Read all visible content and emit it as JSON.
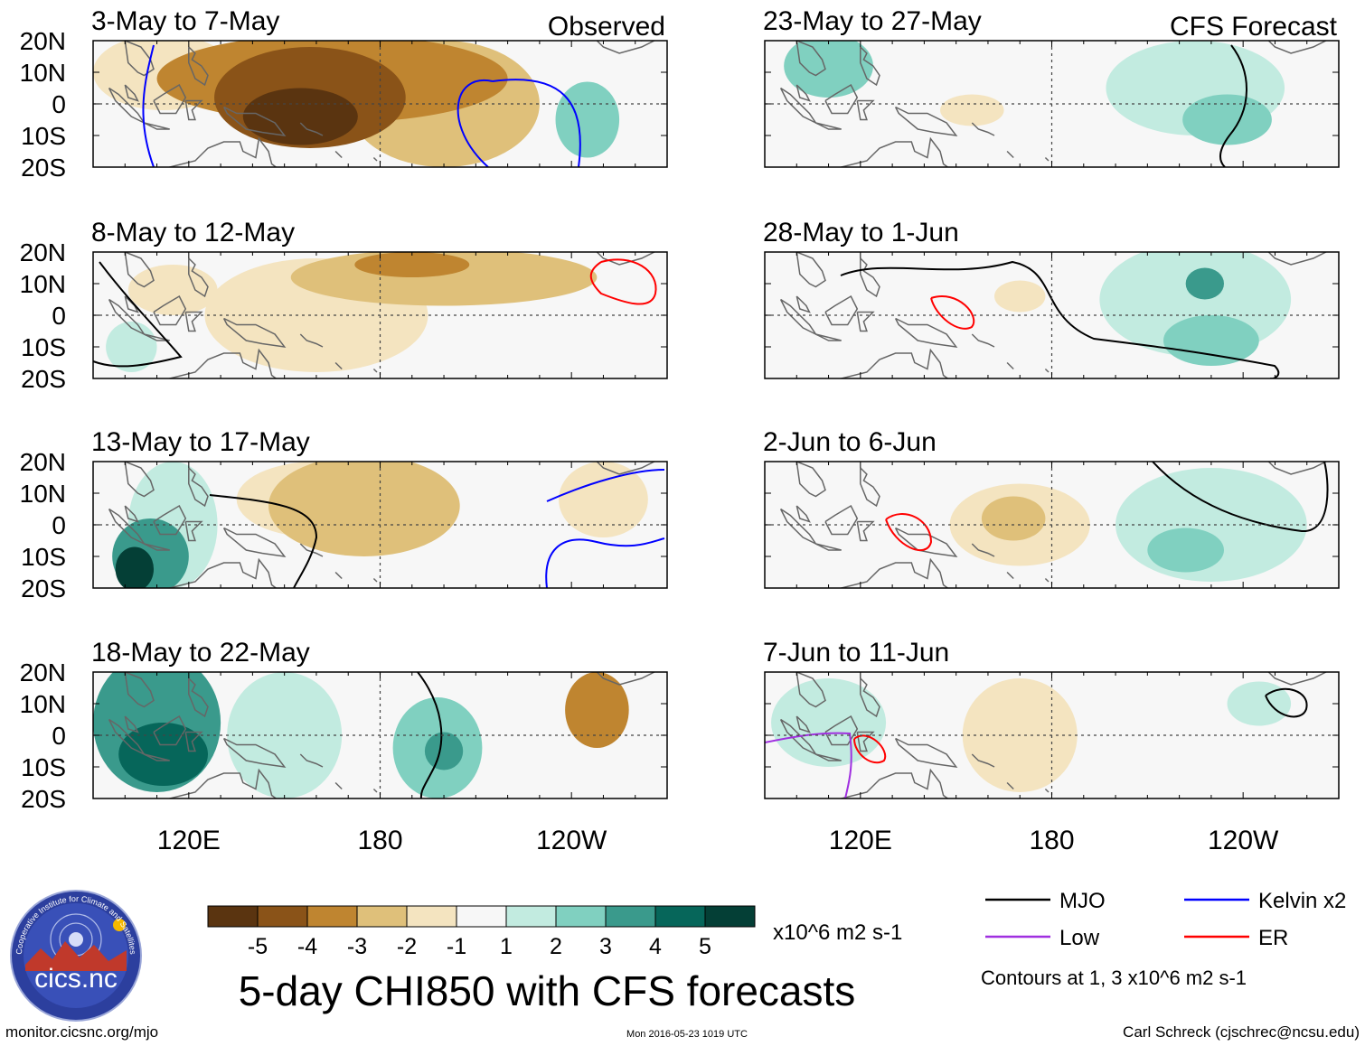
{
  "chart_data": {
    "type": "heatmap",
    "title": "5-day CHI850 with CFS forecasts",
    "variable": "CHI850",
    "units": "x10^6 m2 s-1",
    "x_ticks": [
      "120E",
      "180",
      "120W"
    ],
    "y_ticks": [
      "20N",
      "10N",
      "0",
      "10S",
      "20S"
    ],
    "columns": [
      {
        "label": "Observed",
        "panels": [
          {
            "period": "3-May to 7-May",
            "blobs": [
              {
                "lon": 165,
                "lat": 8,
                "rx": 55,
                "ry": 14,
                "val": -3
              },
              {
                "lon": 158,
                "lat": 2,
                "rx": 30,
                "ry": 16,
                "val": -4
              },
              {
                "lon": 155,
                "lat": -4,
                "rx": 18,
                "ry": 9,
                "val": -5
              },
              {
                "lon": 200,
                "lat": 0,
                "rx": 30,
                "ry": 20,
                "val": -2
              },
              {
                "lon": 112,
                "lat": 10,
                "rx": 22,
                "ry": 12,
                "val": -1
              },
              {
                "lon": 245,
                "lat": -5,
                "rx": 10,
                "ry": 12,
                "val": 2
              }
            ]
          },
          {
            "period": "8-May to 12-May",
            "blobs": [
              {
                "lon": 200,
                "lat": 12,
                "rx": 48,
                "ry": 9,
                "val": -2
              },
              {
                "lon": 190,
                "lat": 16,
                "rx": 18,
                "ry": 4,
                "val": -3
              },
              {
                "lon": 160,
                "lat": 0,
                "rx": 35,
                "ry": 18,
                "val": -1
              },
              {
                "lon": 115,
                "lat": 8,
                "rx": 14,
                "ry": 8,
                "val": -1
              },
              {
                "lon": 102,
                "lat": -10,
                "rx": 8,
                "ry": 8,
                "val": 1
              }
            ]
          },
          {
            "period": "13-May to 17-May",
            "blobs": [
              {
                "lon": 175,
                "lat": 6,
                "rx": 30,
                "ry": 16,
                "val": -2
              },
              {
                "lon": 160,
                "lat": 8,
                "rx": 25,
                "ry": 12,
                "val": -1
              },
              {
                "lon": 108,
                "lat": -10,
                "rx": 12,
                "ry": 12,
                "val": 3
              },
              {
                "lon": 103,
                "lat": -14,
                "rx": 6,
                "ry": 7,
                "val": 5
              },
              {
                "lon": 115,
                "lat": 0,
                "rx": 14,
                "ry": 20,
                "val": 1
              },
              {
                "lon": 250,
                "lat": 8,
                "rx": 14,
                "ry": 12,
                "val": -1
              }
            ]
          },
          {
            "period": "18-May to 22-May",
            "blobs": [
              {
                "lon": 110,
                "lat": 4,
                "rx": 20,
                "ry": 22,
                "val": 3
              },
              {
                "lon": 112,
                "lat": -6,
                "rx": 14,
                "ry": 10,
                "val": 4
              },
              {
                "lon": 198,
                "lat": -4,
                "rx": 14,
                "ry": 16,
                "val": 2
              },
              {
                "lon": 200,
                "lat": -5,
                "rx": 6,
                "ry": 6,
                "val": 3
              },
              {
                "lon": 248,
                "lat": 8,
                "rx": 10,
                "ry": 12,
                "val": -3
              },
              {
                "lon": 150,
                "lat": 0,
                "rx": 18,
                "ry": 20,
                "val": 1
              }
            ]
          }
        ]
      },
      {
        "label": "CFS Forecast",
        "panels": [
          {
            "period": "23-May to 27-May",
            "blobs": [
              {
                "lon": 110,
                "lat": 12,
                "rx": 14,
                "ry": 10,
                "val": 2
              },
              {
                "lon": 225,
                "lat": 5,
                "rx": 28,
                "ry": 15,
                "val": 1
              },
              {
                "lon": 235,
                "lat": -5,
                "rx": 14,
                "ry": 8,
                "val": 2
              },
              {
                "lon": 155,
                "lat": -2,
                "rx": 10,
                "ry": 5,
                "val": -1
              }
            ]
          },
          {
            "period": "28-May to 1-Jun",
            "blobs": [
              {
                "lon": 225,
                "lat": 5,
                "rx": 30,
                "ry": 18,
                "val": 1
              },
              {
                "lon": 230,
                "lat": -8,
                "rx": 15,
                "ry": 8,
                "val": 2
              },
              {
                "lon": 228,
                "lat": 10,
                "rx": 6,
                "ry": 5,
                "val": 3
              },
              {
                "lon": 170,
                "lat": 6,
                "rx": 8,
                "ry": 5,
                "val": -1
              }
            ]
          },
          {
            "period": "2-Jun to 6-Jun",
            "blobs": [
              {
                "lon": 170,
                "lat": 0,
                "rx": 22,
                "ry": 13,
                "val": -1
              },
              {
                "lon": 168,
                "lat": 2,
                "rx": 10,
                "ry": 7,
                "val": -2
              },
              {
                "lon": 230,
                "lat": 0,
                "rx": 30,
                "ry": 18,
                "val": 1
              },
              {
                "lon": 222,
                "lat": -8,
                "rx": 12,
                "ry": 7,
                "val": 2
              }
            ]
          },
          {
            "period": "7-Jun to 11-Jun",
            "blobs": [
              {
                "lon": 170,
                "lat": 0,
                "rx": 18,
                "ry": 18,
                "val": -1
              },
              {
                "lon": 110,
                "lat": 4,
                "rx": 18,
                "ry": 14,
                "val": 1
              },
              {
                "lon": 245,
                "lat": 10,
                "rx": 10,
                "ry": 7,
                "val": 1
              }
            ]
          }
        ]
      }
    ],
    "colorbar": {
      "ticks": [
        "-5",
        "-4",
        "-3",
        "-2",
        "-1",
        "1",
        "2",
        "3",
        "4",
        "5"
      ],
      "colors": [
        "#5a3410",
        "#8a5318",
        "#bf8530",
        "#dfc07a",
        "#f4e4c0",
        "#f7f7f7",
        "#c2ebe0",
        "#80d0c0",
        "#3a9a8c",
        "#06665a",
        "#043f36"
      ]
    },
    "legend": [
      {
        "label": "MJO",
        "color": "#000000"
      },
      {
        "label": "Kelvin x2",
        "color": "#0000ff"
      },
      {
        "label": "Low",
        "color": "#a030e0"
      },
      {
        "label": "ER",
        "color": "#ff0000"
      }
    ],
    "contour_note": "Contours at 1, 3 x10^6 m2 s-1"
  },
  "footer": {
    "url": "monitor.cicsnc.org/mjo",
    "timestamp": "Mon 2016-05-23 1019 UTC",
    "author": "Carl Schreck (cjschrec@ncsu.edu)"
  },
  "logo": {
    "text": "cics.nc",
    "ring_text": "Cooperative Institute for Climate and Satellites"
  }
}
